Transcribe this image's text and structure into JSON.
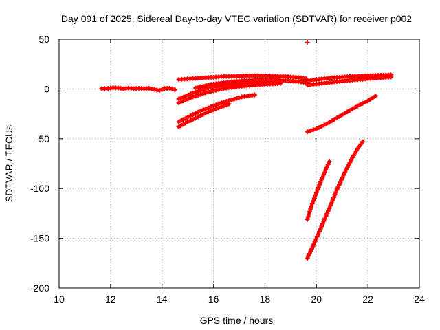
{
  "chart_data": {
    "type": "scatter",
    "title": "Day 091 of 2025, Sidereal Day-to-day VTEC variation (SDTVAR) for receiver p002",
    "xlabel": "GPS time / hours",
    "ylabel": "SDTVAR / TECUs",
    "xlim": [
      10,
      24
    ],
    "ylim": [
      -200,
      50
    ],
    "x_ticks": [
      10,
      12,
      14,
      16,
      18,
      20,
      22,
      24
    ],
    "y_ticks": [
      50,
      0,
      -50,
      -100,
      -150,
      -200
    ],
    "x_tick_labels": [
      "10",
      "12",
      "14",
      "16",
      "18",
      "20",
      "22",
      "24"
    ],
    "y_tick_labels": [
      "50",
      "0",
      "-50",
      "-100",
      "-150",
      "-200"
    ],
    "grid": true,
    "legend": "none",
    "marker": "plus",
    "color": "#ff0000",
    "series": [
      {
        "x": [
          11.65,
          11.9,
          12.1,
          12.3,
          12.5,
          12.7,
          12.9,
          13.1,
          13.3,
          13.5,
          13.7,
          13.9,
          14.1,
          14.3,
          14.5
        ],
        "y": [
          0.3,
          0.5,
          1.2,
          1.0,
          0.2,
          0.9,
          0.4,
          0.7,
          0.3,
          0.6,
          -0.5,
          -1.5,
          0.5,
          0.8,
          -0.8
        ]
      },
      {
        "x": [
          14.65,
          15.2,
          15.8,
          16.4,
          17.0,
          17.6,
          18.2,
          18.8,
          19.3,
          19.6
        ],
        "y": [
          9.5,
          10.5,
          11.5,
          12.5,
          13.0,
          13.3,
          13.0,
          12.5,
          11.5,
          10.5
        ]
      },
      {
        "x": [
          14.65,
          15.2,
          15.8,
          16.4,
          17.0,
          17.6,
          18.2,
          18.8,
          19.3,
          19.6
        ],
        "y": [
          -10,
          -4,
          1,
          4,
          6,
          7,
          8,
          8.5,
          7.5,
          6.5
        ]
      },
      {
        "x": [
          14.65,
          15.2,
          15.8,
          16.4,
          17.0,
          17.6,
          18.2,
          18.6
        ],
        "y": [
          -14,
          -8,
          -3,
          0.5,
          2.5,
          4,
          5,
          5.5
        ]
      },
      {
        "x": [
          15.3,
          15.8,
          16.3,
          16.8,
          17.3,
          17.8,
          18.3,
          18.6
        ],
        "y": [
          1,
          4,
          6,
          7.5,
          8.5,
          9,
          9,
          9
        ]
      },
      {
        "x": [
          14.65,
          15.1,
          15.5,
          15.9,
          16.3,
          16.7,
          17.1,
          17.6
        ],
        "y": [
          -33,
          -27,
          -22,
          -18,
          -14,
          -11,
          -8,
          -6
        ]
      },
      {
        "x": [
          14.65,
          15.0,
          15.4,
          15.8,
          16.2,
          16.6
        ],
        "y": [
          -38,
          -33,
          -28,
          -23,
          -19,
          -15
        ]
      },
      {
        "x": [
          19.65,
          20.0,
          20.5,
          21.0,
          21.5,
          22.0,
          22.5,
          22.9
        ],
        "y": [
          8,
          9.5,
          11,
          12,
          12.8,
          13.3,
          13.8,
          14.2
        ]
      },
      {
        "x": [
          19.65,
          20.0,
          20.5,
          21.0,
          21.5,
          22.0,
          22.5,
          22.9
        ],
        "y": [
          4,
          5,
          6.5,
          8,
          9.2,
          10.2,
          11.2,
          12
        ]
      },
      {
        "x": [
          19.65,
          20.0,
          20.4,
          20.8,
          21.2,
          21.6,
          22.0,
          22.3
        ],
        "y": [
          -43,
          -40,
          -35,
          -29,
          -23,
          -17,
          -12,
          -7
        ]
      },
      {
        "x": [
          19.65,
          19.8,
          20.0,
          20.2,
          20.4,
          20.5
        ],
        "y": [
          -131,
          -118,
          -104,
          -91,
          -79,
          -73
        ]
      },
      {
        "x": [
          19.65,
          19.9,
          20.2,
          20.5,
          20.8,
          21.1,
          21.4,
          21.6,
          21.8
        ],
        "y": [
          -170,
          -156,
          -138,
          -120,
          -101,
          -84,
          -69,
          -60,
          -53
        ]
      },
      {
        "x": [
          19.65
        ],
        "y": [
          47
        ]
      }
    ]
  }
}
